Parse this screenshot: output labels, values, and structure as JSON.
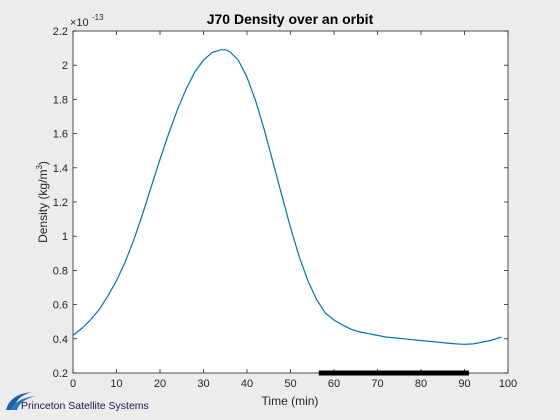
{
  "chart_data": {
    "type": "line",
    "title": "J70 Density over an orbit",
    "xlabel": "Time (min)",
    "ylabel_main": "Density (kg/m",
    "ylabel_sup": "3",
    "ylabel_close": ")",
    "exponent_base": "×10",
    "exponent_power": "-13",
    "xlim": [
      0,
      100
    ],
    "ylim": [
      0.2,
      2.2
    ],
    "xticks": [
      "0",
      "10",
      "20",
      "30",
      "40",
      "50",
      "60",
      "70",
      "80",
      "90",
      "100"
    ],
    "yticks": [
      "0.2",
      "0.4",
      "0.6",
      "0.8",
      "1",
      "1.2",
      "1.4",
      "1.6",
      "1.8",
      "2",
      "2.2"
    ],
    "grid": false,
    "line_color": "#0072BD",
    "eclipse_bar": {
      "x_start": 56.5,
      "x_end": 91,
      "color": "#000000"
    },
    "series": [
      {
        "x": [
          0,
          2,
          4,
          6,
          8,
          10,
          12,
          14,
          16,
          18,
          20,
          22,
          24,
          26,
          28,
          30,
          32,
          34,
          35,
          36,
          38,
          40,
          42,
          44,
          46,
          48,
          50,
          52,
          54,
          56,
          58,
          60,
          62,
          64,
          66,
          68,
          70,
          72,
          74,
          76,
          78,
          80,
          82,
          84,
          86,
          88,
          90,
          92,
          94,
          96,
          98.5
        ],
        "y": [
          0.42,
          0.46,
          0.51,
          0.57,
          0.65,
          0.74,
          0.85,
          0.98,
          1.13,
          1.29,
          1.45,
          1.6,
          1.74,
          1.86,
          1.96,
          2.03,
          2.075,
          2.09,
          2.09,
          2.08,
          2.03,
          1.93,
          1.79,
          1.62,
          1.43,
          1.24,
          1.05,
          0.88,
          0.74,
          0.63,
          0.55,
          0.51,
          0.48,
          0.455,
          0.44,
          0.43,
          0.42,
          0.41,
          0.405,
          0.4,
          0.395,
          0.39,
          0.385,
          0.38,
          0.375,
          0.37,
          0.368,
          0.37,
          0.38,
          0.39,
          0.41
        ]
      }
    ]
  },
  "logo": {
    "text": "Princeton Satellite Systems"
  }
}
